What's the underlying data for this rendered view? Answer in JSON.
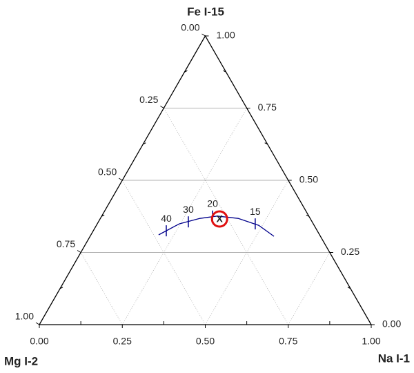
{
  "chart_data": {
    "type": "ternary",
    "top_label": "Fe I-15",
    "left_label": "Mg I-2",
    "right_label": "Na I-1",
    "na_ticks": [
      {
        "value": 0,
        "label": "0.00"
      },
      {
        "value": 0.25,
        "label": "0.25"
      },
      {
        "value": 0.5,
        "label": "0.50"
      },
      {
        "value": 0.75,
        "label": "0.75"
      },
      {
        "value": 1,
        "label": "1.00"
      }
    ],
    "fe_ticks": [
      {
        "value": 0,
        "label": "0.00"
      },
      {
        "value": 0.25,
        "label": "0.25"
      },
      {
        "value": 0.5,
        "label": "0.50"
      },
      {
        "value": 0.75,
        "label": "0.75"
      },
      {
        "value": 1,
        "label": "1.00"
      }
    ],
    "mg_ticks": [
      {
        "value": 0,
        "label": "0.00"
      },
      {
        "value": 0.25,
        "label": "0.25"
      },
      {
        "value": 0.5,
        "label": "0.50"
      },
      {
        "value": 0.75,
        "label": "0.75"
      },
      {
        "value": 1,
        "label": "1.00"
      }
    ],
    "minor_ticks": [
      0.125,
      0.375,
      0.625,
      0.875
    ],
    "grid": true,
    "curve": {
      "color": "#00008b",
      "na": [
        0.204,
        0.247,
        0.3,
        0.348,
        0.415,
        0.489,
        0.554
      ],
      "fe": [
        0.311,
        0.349,
        0.368,
        0.376,
        0.368,
        0.344,
        0.306
      ]
    },
    "curve_marks": [
      {
        "value": 40,
        "na": 0.22,
        "fe": 0.325
      },
      {
        "value": 30,
        "na": 0.271,
        "fe": 0.356
      },
      {
        "value": 20,
        "na": 0.334,
        "fe": 0.376
      },
      {
        "value": 15,
        "na": 0.476,
        "fe": 0.349
      }
    ],
    "sample": {
      "label": "X",
      "na": 0.36,
      "fe": 0.366,
      "color": "#e01010"
    }
  }
}
